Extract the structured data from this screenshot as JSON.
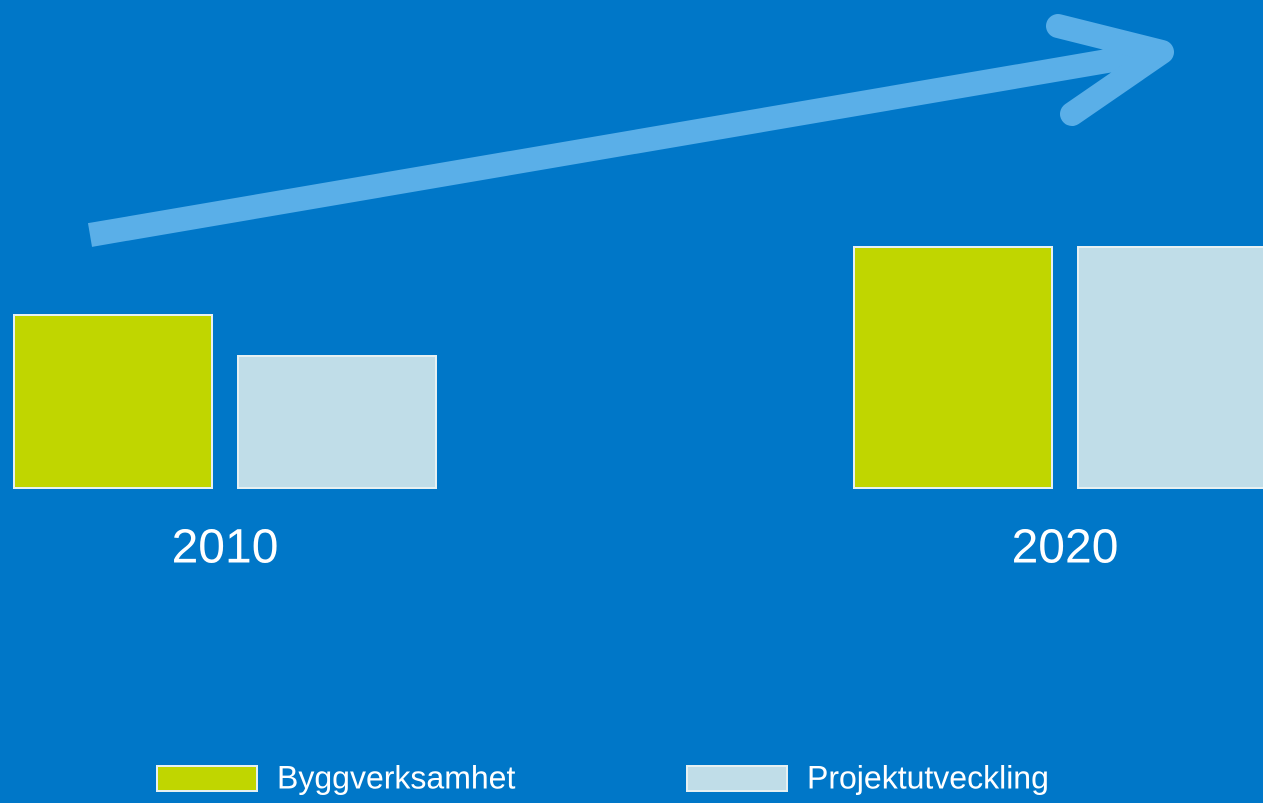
{
  "chart_data": {
    "type": "bar",
    "categories": [
      "2010",
      "2020"
    ],
    "series": [
      {
        "name": "Byggverksamhet",
        "color": "#c0d600",
        "values": [
          173,
          241
        ]
      },
      {
        "name": "Projektutveckling",
        "color": "#c0dde8",
        "values": [
          132,
          241
        ]
      }
    ],
    "ylim": [
      0,
      488
    ]
  }
}
